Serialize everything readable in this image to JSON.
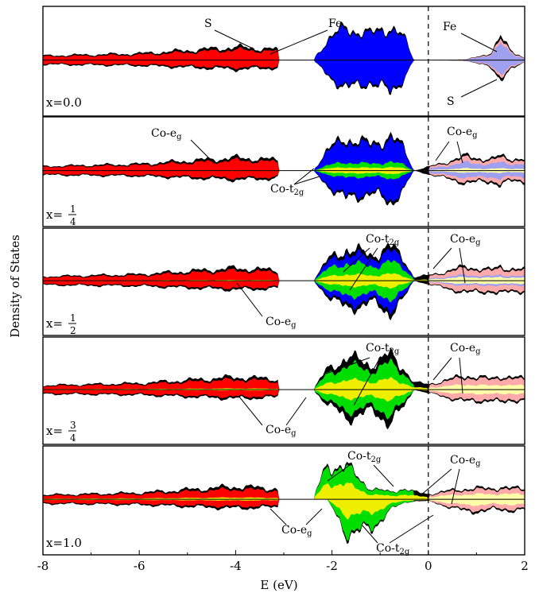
{
  "chart_data": {
    "type": "area",
    "xlabel": "E (eV)",
    "ylabel": "Density of States",
    "xlim": [
      -8,
      2
    ],
    "x_ticks": [
      -8,
      -6,
      -4,
      -2,
      0,
      2
    ],
    "x_tick_labels": [
      "-8",
      "-6",
      "-4",
      "-2",
      "0",
      "2"
    ],
    "fermi_level": 0,
    "colors": {
      "total": "#000000",
      "S_occupied": "#ff0000",
      "Fe_occupied": "#0000ff",
      "Co_t2g": "#00dd00",
      "Co_eg": "#eeee00",
      "S_unoccupied": "#ffaaaa",
      "Fe_unoccupied": "#a0a0f0",
      "Co_eg_unoccupied": "#ffffaa"
    },
    "panels": [
      {
        "x_label": "x=0.0",
        "annotations": [
          "S",
          "Fe",
          "Fe",
          "S"
        ],
        "envelope": {
          "x": [
            -8,
            -6,
            -4,
            -3.2,
            -2.4,
            -2.1,
            -1.7,
            -1.2,
            -0.8,
            -0.5,
            -0.3,
            0,
            0.8,
            1.3,
            1.5,
            1.7,
            2
          ],
          "up": [
            0.12,
            0.18,
            0.35,
            0.3,
            0,
            0.55,
            0.9,
            0.7,
            0.95,
            0.6,
            0,
            0,
            0.02,
            0.2,
            0.6,
            0.3,
            0.05
          ],
          "dn": [
            0.12,
            0.15,
            0.25,
            0.22,
            0,
            0.4,
            0.8,
            0.6,
            0.9,
            0.5,
            0,
            0,
            0.02,
            0.2,
            0.5,
            0.3,
            0.05
          ]
        }
      },
      {
        "x_label": "x=1/4",
        "annotations": [
          "Co-eg",
          "Co-t2g",
          "Co-eg"
        ],
        "envelope": {
          "x": [
            -8,
            -6,
            -4,
            -3.2,
            -2.4,
            -2.1,
            -1.7,
            -1.2,
            -0.8,
            -0.5,
            -0.3,
            0,
            0.8,
            1.3,
            1.5,
            1.7,
            2
          ],
          "up": [
            0.12,
            0.18,
            0.35,
            0.3,
            0,
            0.55,
            0.9,
            0.7,
            0.95,
            0.6,
            0,
            0.1,
            0.4,
            0.3,
            0.4,
            0.35,
            0.3
          ],
          "dn": [
            0.12,
            0.15,
            0.25,
            0.22,
            0,
            0.4,
            0.8,
            0.6,
            0.9,
            0.5,
            0,
            0.1,
            0.35,
            0.3,
            0.4,
            0.3,
            0.3
          ]
        }
      },
      {
        "x_label": "x=1/2",
        "annotations": [
          "Co-t2g",
          "Co-eg",
          "Co-eg"
        ],
        "envelope": {
          "x": [
            -8,
            -6,
            -4,
            -3.2,
            -2.4,
            -2.1,
            -1.7,
            -1.2,
            -0.8,
            -0.5,
            -0.3,
            0,
            0.8,
            1.3,
            1.5,
            1.7,
            2
          ],
          "up": [
            0.12,
            0.18,
            0.35,
            0.3,
            0,
            0.55,
            0.9,
            0.7,
            0.95,
            0.6,
            0.1,
            0.15,
            0.4,
            0.3,
            0.4,
            0.35,
            0.3
          ],
          "dn": [
            0.12,
            0.15,
            0.25,
            0.22,
            0,
            0.4,
            0.8,
            0.6,
            0.9,
            0.5,
            0,
            0.1,
            0.35,
            0.3,
            0.4,
            0.3,
            0.3
          ]
        }
      },
      {
        "x_label": "x=3/4",
        "annotations": [
          "Co-t2g",
          "Co-eg",
          "Co-eg"
        ],
        "envelope": {
          "x": [
            -8,
            -6,
            -4,
            -3.2,
            -2.4,
            -2.1,
            -1.7,
            -1.2,
            -0.8,
            -0.5,
            -0.3,
            0,
            0.8,
            1.3,
            1.5,
            1.7,
            2
          ],
          "up": [
            0.12,
            0.18,
            0.35,
            0.3,
            0,
            0.55,
            0.9,
            0.7,
            0.95,
            0.6,
            0.2,
            0.15,
            0.4,
            0.3,
            0.4,
            0.35,
            0.3
          ],
          "dn": [
            0.12,
            0.15,
            0.25,
            0.22,
            0,
            0.4,
            0.8,
            0.6,
            0.9,
            0.5,
            0,
            0.1,
            0.35,
            0.3,
            0.4,
            0.3,
            0.3
          ]
        }
      },
      {
        "x_label": "x=1.0",
        "annotations": [
          "Co-t2g",
          "Co-eg",
          "Co-eg",
          "Co-t2g"
        ],
        "envelope": {
          "x": [
            -8,
            -6,
            -4,
            -3.2,
            -2.4,
            -2.1,
            -1.7,
            -1.2,
            -0.8,
            -0.5,
            -0.3,
            0,
            0.8,
            1.3,
            1.5,
            1.7,
            2
          ],
          "up": [
            0.12,
            0.18,
            0.35,
            0.3,
            0,
            0.95,
            0.9,
            0.3,
            0.2,
            0.3,
            0.2,
            0.15,
            0.3,
            0.3,
            0.35,
            0.3,
            0.3
          ],
          "dn": [
            0.12,
            0.15,
            0.25,
            0.22,
            0,
            0,
            0.95,
            0.85,
            0.3,
            0.1,
            0.05,
            0.05,
            0.35,
            0.3,
            0.3,
            0.3,
            0.3
          ]
        }
      }
    ]
  }
}
